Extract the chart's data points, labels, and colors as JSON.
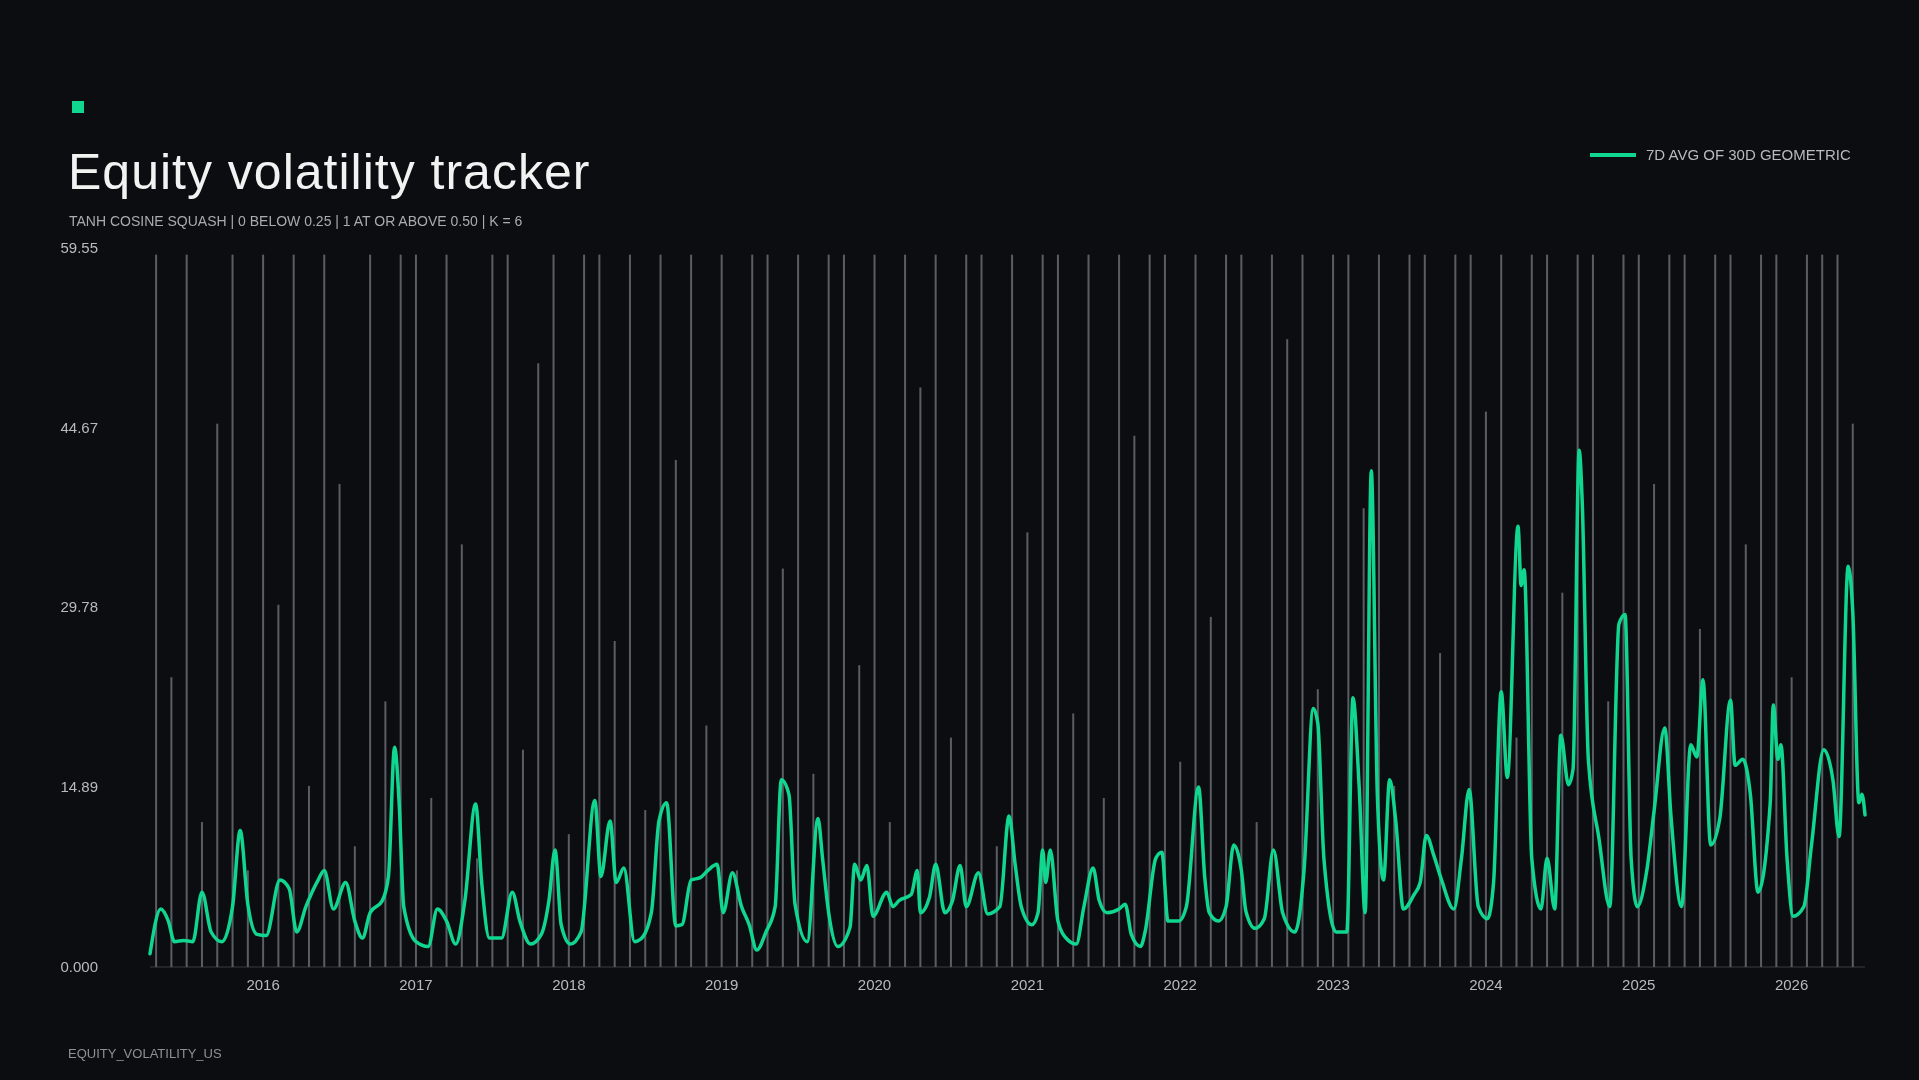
{
  "chart_data": {
    "type": "line",
    "title": "Equity volatility tracker",
    "subtitle": "TANH COSINE SQUASH | 0 BELOW 0.25 | 1 AT OR ABOVE 0.50 | K = 6",
    "annotations": [
      "EQUITY_VOLATILITY_US"
    ],
    "xlim": [
      2015.26,
      2026.48
    ],
    "xticks": [
      2016,
      2017,
      2018,
      2019,
      2020,
      2021,
      2022,
      2023,
      2024,
      2025,
      2026
    ],
    "ylim": [
      0,
      59.55
    ],
    "yticks": [
      {
        "value": 0,
        "label": "0.000"
      },
      14.89,
      29.78,
      44.67,
      59.55
    ],
    "grid": false,
    "legend": "top right",
    "marker": "none",
    "line_style": "solid",
    "series": [
      {
        "type": "bar",
        "color": "#5a5e64",
        "x": [
          2015.3,
          2015.4,
          2015.5,
          2015.6,
          2015.7,
          2015.8,
          2015.9,
          2016.0,
          2016.1,
          2016.2,
          2016.3,
          2016.4,
          2016.5,
          2016.6,
          2016.7,
          2016.8,
          2016.9,
          2017.0,
          2017.1,
          2017.2,
          2017.3,
          2017.4,
          2017.5,
          2017.6,
          2017.7,
          2017.8,
          2017.9,
          2018.0,
          2018.1,
          2018.2,
          2018.3,
          2018.4,
          2018.5,
          2018.6,
          2018.7,
          2018.8,
          2018.9,
          2019.0,
          2019.1,
          2019.2,
          2019.3,
          2019.4,
          2019.5,
          2019.6,
          2019.7,
          2019.8,
          2019.9,
          2020.0,
          2020.1,
          2020.2,
          2020.3,
          2020.4,
          2020.5,
          2020.6,
          2020.7,
          2020.8,
          2020.9,
          2021.0,
          2021.1,
          2021.2,
          2021.3,
          2021.4,
          2021.5,
          2021.6,
          2021.7,
          2021.8,
          2021.9,
          2022.0,
          2022.1,
          2022.2,
          2022.3,
          2022.4,
          2022.5,
          2022.6,
          2022.7,
          2022.8,
          2022.9,
          2023.0,
          2023.1,
          2023.2,
          2023.3,
          2023.4,
          2023.5,
          2023.6,
          2023.7,
          2023.8,
          2023.9,
          2024.0,
          2024.1,
          2024.2,
          2024.3,
          2024.4,
          2024.5,
          2024.6,
          2024.7,
          2024.8,
          2024.9,
          2025.0,
          2025.1,
          2025.2,
          2025.3,
          2025.4,
          2025.5,
          2025.6,
          2025.7,
          2025.8,
          2025.9,
          2026.0,
          2026.1,
          2026.2,
          2026.3,
          2026.4
        ],
        "values": [
          59,
          24,
          59,
          12,
          45,
          59,
          8,
          59,
          30,
          59,
          15,
          59,
          40,
          10,
          59,
          22,
          59,
          59,
          14,
          59,
          35,
          9,
          59,
          59,
          18,
          50,
          59,
          11,
          59,
          59,
          27,
          59,
          13,
          59,
          42,
          59,
          20,
          59,
          8,
          59,
          59,
          33,
          59,
          16,
          59,
          59,
          25,
          59,
          12,
          59,
          48,
          59,
          19,
          59,
          59,
          10,
          59,
          36,
          59,
          59,
          21,
          59,
          14,
          59,
          44,
          59,
          59,
          17,
          59,
          29,
          59,
          59,
          12,
          59,
          52,
          59,
          23,
          59,
          59,
          38,
          59,
          15,
          59,
          59,
          26,
          59,
          59,
          46,
          59,
          19,
          59,
          59,
          31,
          59,
          59,
          22,
          59,
          59,
          40,
          59,
          59,
          28,
          59,
          59,
          35,
          59,
          59,
          24,
          59,
          59,
          59,
          45
        ]
      },
      {
        "name": "7D AVG OF 30D GEOMETRIC",
        "color": "#10d68f",
        "x": [
          2015.26,
          2015.33,
          2015.38,
          2015.42,
          2015.48,
          2015.54,
          2015.6,
          2015.66,
          2015.73,
          2015.8,
          2015.85,
          2015.9,
          2015.96,
          2016.02,
          2016.11,
          2016.17,
          2016.22,
          2016.28,
          2016.36,
          2016.4,
          2016.46,
          2016.54,
          2016.6,
          2016.65,
          2016.7,
          2016.78,
          2016.82,
          2016.86,
          2016.89,
          2016.92,
          2017.0,
          2017.08,
          2017.14,
          2017.2,
          2017.26,
          2017.32,
          2017.39,
          2017.43,
          2017.48,
          2017.56,
          2017.63,
          2017.68,
          2017.75,
          2017.82,
          2017.87,
          2017.91,
          2017.95,
          2018.01,
          2018.08,
          2018.17,
          2018.21,
          2018.27,
          2018.31,
          2018.36,
          2018.43,
          2018.47,
          2018.54,
          2018.59,
          2018.64,
          2018.7,
          2018.74,
          2018.8,
          2018.86,
          2018.91,
          2018.97,
          2019.01,
          2019.07,
          2019.13,
          2019.18,
          2019.23,
          2019.29,
          2019.35,
          2019.39,
          2019.44,
          2019.48,
          2019.56,
          2019.63,
          2019.66,
          2019.7,
          2019.76,
          2019.84,
          2019.87,
          2019.91,
          2019.95,
          2019.99,
          2020.08,
          2020.12,
          2020.16,
          2020.24,
          2020.28,
          2020.3,
          2020.36,
          2020.4,
          2020.46,
          2020.51,
          2020.56,
          2020.6,
          2020.68,
          2020.74,
          2020.82,
          2020.88,
          2020.92,
          2020.96,
          2021.03,
          2021.07,
          2021.1,
          2021.12,
          2021.15,
          2021.2,
          2021.26,
          2021.32,
          2021.37,
          2021.43,
          2021.47,
          2021.52,
          2021.6,
          2021.64,
          2021.68,
          2021.74,
          2021.77,
          2021.84,
          2021.88,
          2021.92,
          2021.99,
          2022.04,
          2022.12,
          2022.16,
          2022.19,
          2022.25,
          2022.3,
          2022.35,
          2022.4,
          2022.43,
          2022.49,
          2022.55,
          2022.61,
          2022.67,
          2022.75,
          2022.81,
          2022.87,
          2022.9,
          2022.94,
          2023.02,
          2023.09,
          2023.13,
          2023.17,
          2023.21,
          2023.25,
          2023.29,
          2023.33,
          2023.37,
          2023.41,
          2023.46,
          2023.53,
          2023.57,
          2023.61,
          2023.66,
          2023.71,
          2023.79,
          2023.84,
          2023.89,
          2023.95,
          2024.01,
          2024.05,
          2024.1,
          2024.14,
          2024.21,
          2024.23,
          2024.25,
          2024.3,
          2024.36,
          2024.4,
          2024.45,
          2024.49,
          2024.54,
          2024.57,
          2024.61,
          2024.63,
          2024.67,
          2024.74,
          2024.81,
          2024.87,
          2024.91,
          2024.95,
          2024.99,
          2025.05,
          2025.1,
          2025.17,
          2025.21,
          2025.28,
          2025.34,
          2025.38,
          2025.42,
          2025.47,
          2025.53,
          2025.6,
          2025.63,
          2025.68,
          2025.73,
          2025.78,
          2025.86,
          2025.88,
          2025.91,
          2025.93,
          2025.97,
          2026.01,
          2026.08,
          2026.13,
          2026.21,
          2026.27,
          2026.31,
          2026.37,
          2026.4,
          2026.44,
          2026.46,
          2026.48
        ],
        "values": [
          1.1,
          4.8,
          3.8,
          2.1,
          2.2,
          2.1,
          6.2,
          2.9,
          2.1,
          5.0,
          11.3,
          5.2,
          2.7,
          2.6,
          7.2,
          6.5,
          2.9,
          5.0,
          7.2,
          8.0,
          4.8,
          7.0,
          3.8,
          2.4,
          4.5,
          5.5,
          7.5,
          18.2,
          13.6,
          5.0,
          2.1,
          1.7,
          4.8,
          3.8,
          1.9,
          5.5,
          13.5,
          7.0,
          2.4,
          2.4,
          6.2,
          3.8,
          1.9,
          2.7,
          5.5,
          9.7,
          3.5,
          1.9,
          2.9,
          13.8,
          7.5,
          12.1,
          7.0,
          8.2,
          2.1,
          2.3,
          4.5,
          12.1,
          13.6,
          3.4,
          3.5,
          7.2,
          7.4,
          8.0,
          8.5,
          4.5,
          7.8,
          5.0,
          3.5,
          1.4,
          2.9,
          5.0,
          15.5,
          14.3,
          5.2,
          2.1,
          12.3,
          9.0,
          4.5,
          1.7,
          3.3,
          8.5,
          7.2,
          8.4,
          4.2,
          6.2,
          5.0,
          5.5,
          6.0,
          8.0,
          4.5,
          5.8,
          8.5,
          4.5,
          5.5,
          8.4,
          5.0,
          7.8,
          4.4,
          5.0,
          12.5,
          8.5,
          5.0,
          3.5,
          4.5,
          9.7,
          7.0,
          9.7,
          3.8,
          2.3,
          1.9,
          5.0,
          8.2,
          5.5,
          4.5,
          4.8,
          5.2,
          2.7,
          1.7,
          2.9,
          9.0,
          9.5,
          3.8,
          3.8,
          5.0,
          14.9,
          7.5,
          4.5,
          3.8,
          5.0,
          10.1,
          8.0,
          4.6,
          3.2,
          4.0,
          9.7,
          4.5,
          2.9,
          8.0,
          21.4,
          20.2,
          9.0,
          2.9,
          2.9,
          22.3,
          15.1,
          4.5,
          41.1,
          14.1,
          7.2,
          15.5,
          12.1,
          4.8,
          6.0,
          7.0,
          10.9,
          9.2,
          7.2,
          4.8,
          9.0,
          14.7,
          5.0,
          4.0,
          7.0,
          22.8,
          15.7,
          36.5,
          31.6,
          32.9,
          9.0,
          4.8,
          9.0,
          4.8,
          19.2,
          15.1,
          16.4,
          42.8,
          38.5,
          17.2,
          10.6,
          5.0,
          28.4,
          29.2,
          9.0,
          5.0,
          7.8,
          12.9,
          19.8,
          12.6,
          5.0,
          18.4,
          17.4,
          23.8,
          10.1,
          12.3,
          22.1,
          16.7,
          17.2,
          14.3,
          6.2,
          13.6,
          21.7,
          17.2,
          18.4,
          9.0,
          4.2,
          5.0,
          10.1,
          18.0,
          15.5,
          10.8,
          33.2,
          29.4,
          13.6,
          14.3,
          12.6
        ]
      }
    ]
  }
}
